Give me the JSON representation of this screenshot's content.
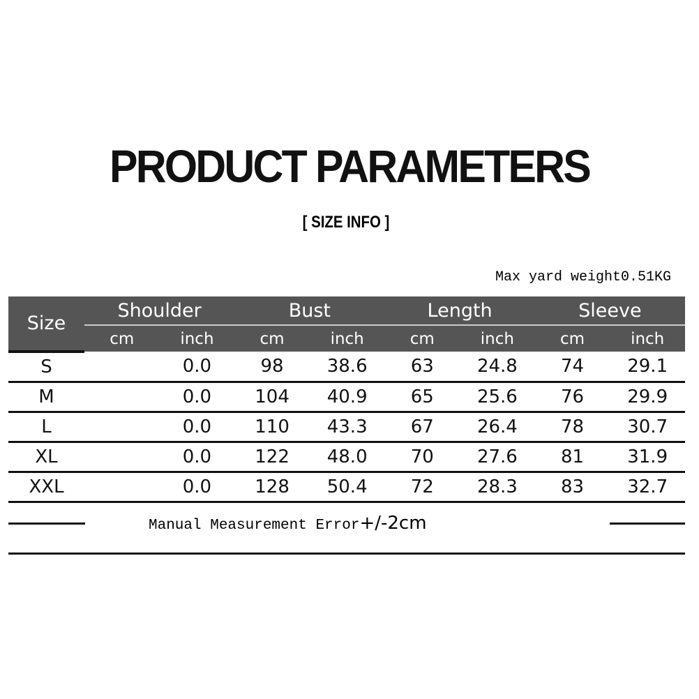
{
  "title": "PRODUCT PARAMETERS",
  "subtitle": "[ SIZE  INFO ]",
  "weight_note": "Max yard weight0.51KG",
  "table": {
    "size_header": "Size",
    "groups": [
      "Shoulder",
      "Bust",
      "Length",
      "Sleeve"
    ],
    "units": [
      "cm",
      "inch",
      "cm",
      "inch",
      "cm",
      "inch",
      "cm",
      "inch"
    ],
    "rows": [
      [
        "S",
        "",
        "0.0",
        "98",
        "38.6",
        "63",
        "24.8",
        "74",
        "29.1"
      ],
      [
        "M",
        "",
        "0.0",
        "104",
        "40.9",
        "65",
        "25.6",
        "76",
        "29.9"
      ],
      [
        "L",
        "",
        "0.0",
        "110",
        "43.3",
        "67",
        "26.4",
        "78",
        "30.7"
      ],
      [
        "XL",
        "",
        "0.0",
        "122",
        "48.0",
        "70",
        "27.6",
        "81",
        "31.9"
      ],
      [
        "XXL",
        "",
        "0.0",
        "128",
        "50.4",
        "72",
        "28.3",
        "83",
        "32.7"
      ]
    ]
  },
  "footer": {
    "note": "Manual Measurement Error",
    "tolerance": "+/-2cm"
  },
  "colors": {
    "header_bg": "#555555",
    "header_text": "#ffffff"
  }
}
